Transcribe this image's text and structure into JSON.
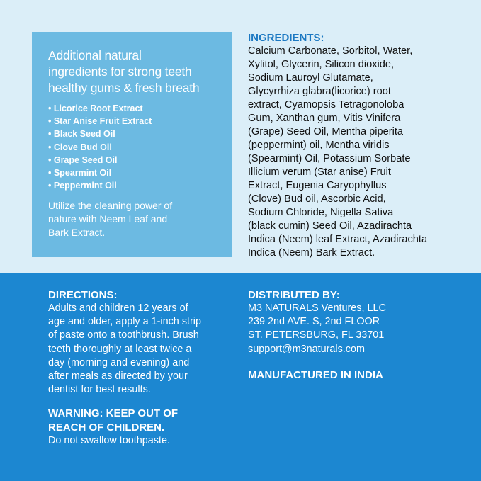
{
  "colors": {
    "top_bg": "#dbeef8",
    "box_bg": "#6cbae2",
    "bottom_bg": "#1c87d1",
    "ingredients_heading": "#1b78c2"
  },
  "box": {
    "headline_lines": [
      "Additional natural",
      "ingredients for strong teeth",
      "healthy gums & fresh breath"
    ],
    "bullets": [
      "Licorice Root Extract",
      "Star Anise Fruit Extract",
      "Black Seed Oil",
      "Clove Bud Oil",
      "Grape Seed Oil",
      "Spearmint Oil",
      "Peppermint Oil"
    ],
    "footer_lines": [
      "Utilize the cleaning power of",
      "nature with Neem Leaf and",
      "Bark Extract."
    ]
  },
  "ingredients": {
    "heading": "INGREDIENTS:",
    "lines": [
      "Calcium Carbonate, Sorbitol, Water,",
      "Xylitol, Glycerin, Silicon dioxide,",
      "Sodium Lauroyl Glutamate,",
      "Glycyrrhiza glabra(licorice) root",
      "extract, Cyamopsis Tetragonoloba",
      "Gum, Xanthan gum, Vitis Vinifera",
      "(Grape) Seed Oil, Mentha piperita",
      "(peppermint) oil, Mentha viridis",
      "(Spearmint) Oil, Potassium Sorbate",
      "Illicium verum (Star anise) Fruit",
      "Extract, Eugenia Caryophyllus",
      "(Clove) Bud oil, Ascorbic Acid,",
      "Sodium Chloride, Nigella Sativa",
      "(black cumin) Seed Oil, Azadirachta",
      "Indica (Neem) leaf Extract, Azadirachta",
      "Indica (Neem) Bark Extract."
    ]
  },
  "directions": {
    "heading": "DIRECTIONS:",
    "lines": [
      "Adults and children 12 years of",
      "age  and older, apply a 1-inch strip",
      "of paste onto a toothbrush. Brush",
      "teeth thoroughly at least twice a",
      "day (morning and evening) and",
      "after meals as directed by your",
      "dentist for best results."
    ],
    "warning_lines": [
      "WARNING: KEEP OUT OF",
      "REACH OF CHILDREN."
    ],
    "warning_text": "Do not swallow toothpaste."
  },
  "distributor": {
    "heading": "DISTRIBUTED BY:",
    "lines": [
      "M3 NATURALS Ventures, LLC",
      "239 2nd AVE. S, 2nd FLOOR",
      "ST. PETERSBURG, FL 33701",
      "support@m3naturals.com"
    ],
    "manufactured": "MANUFACTURED IN INDIA"
  }
}
